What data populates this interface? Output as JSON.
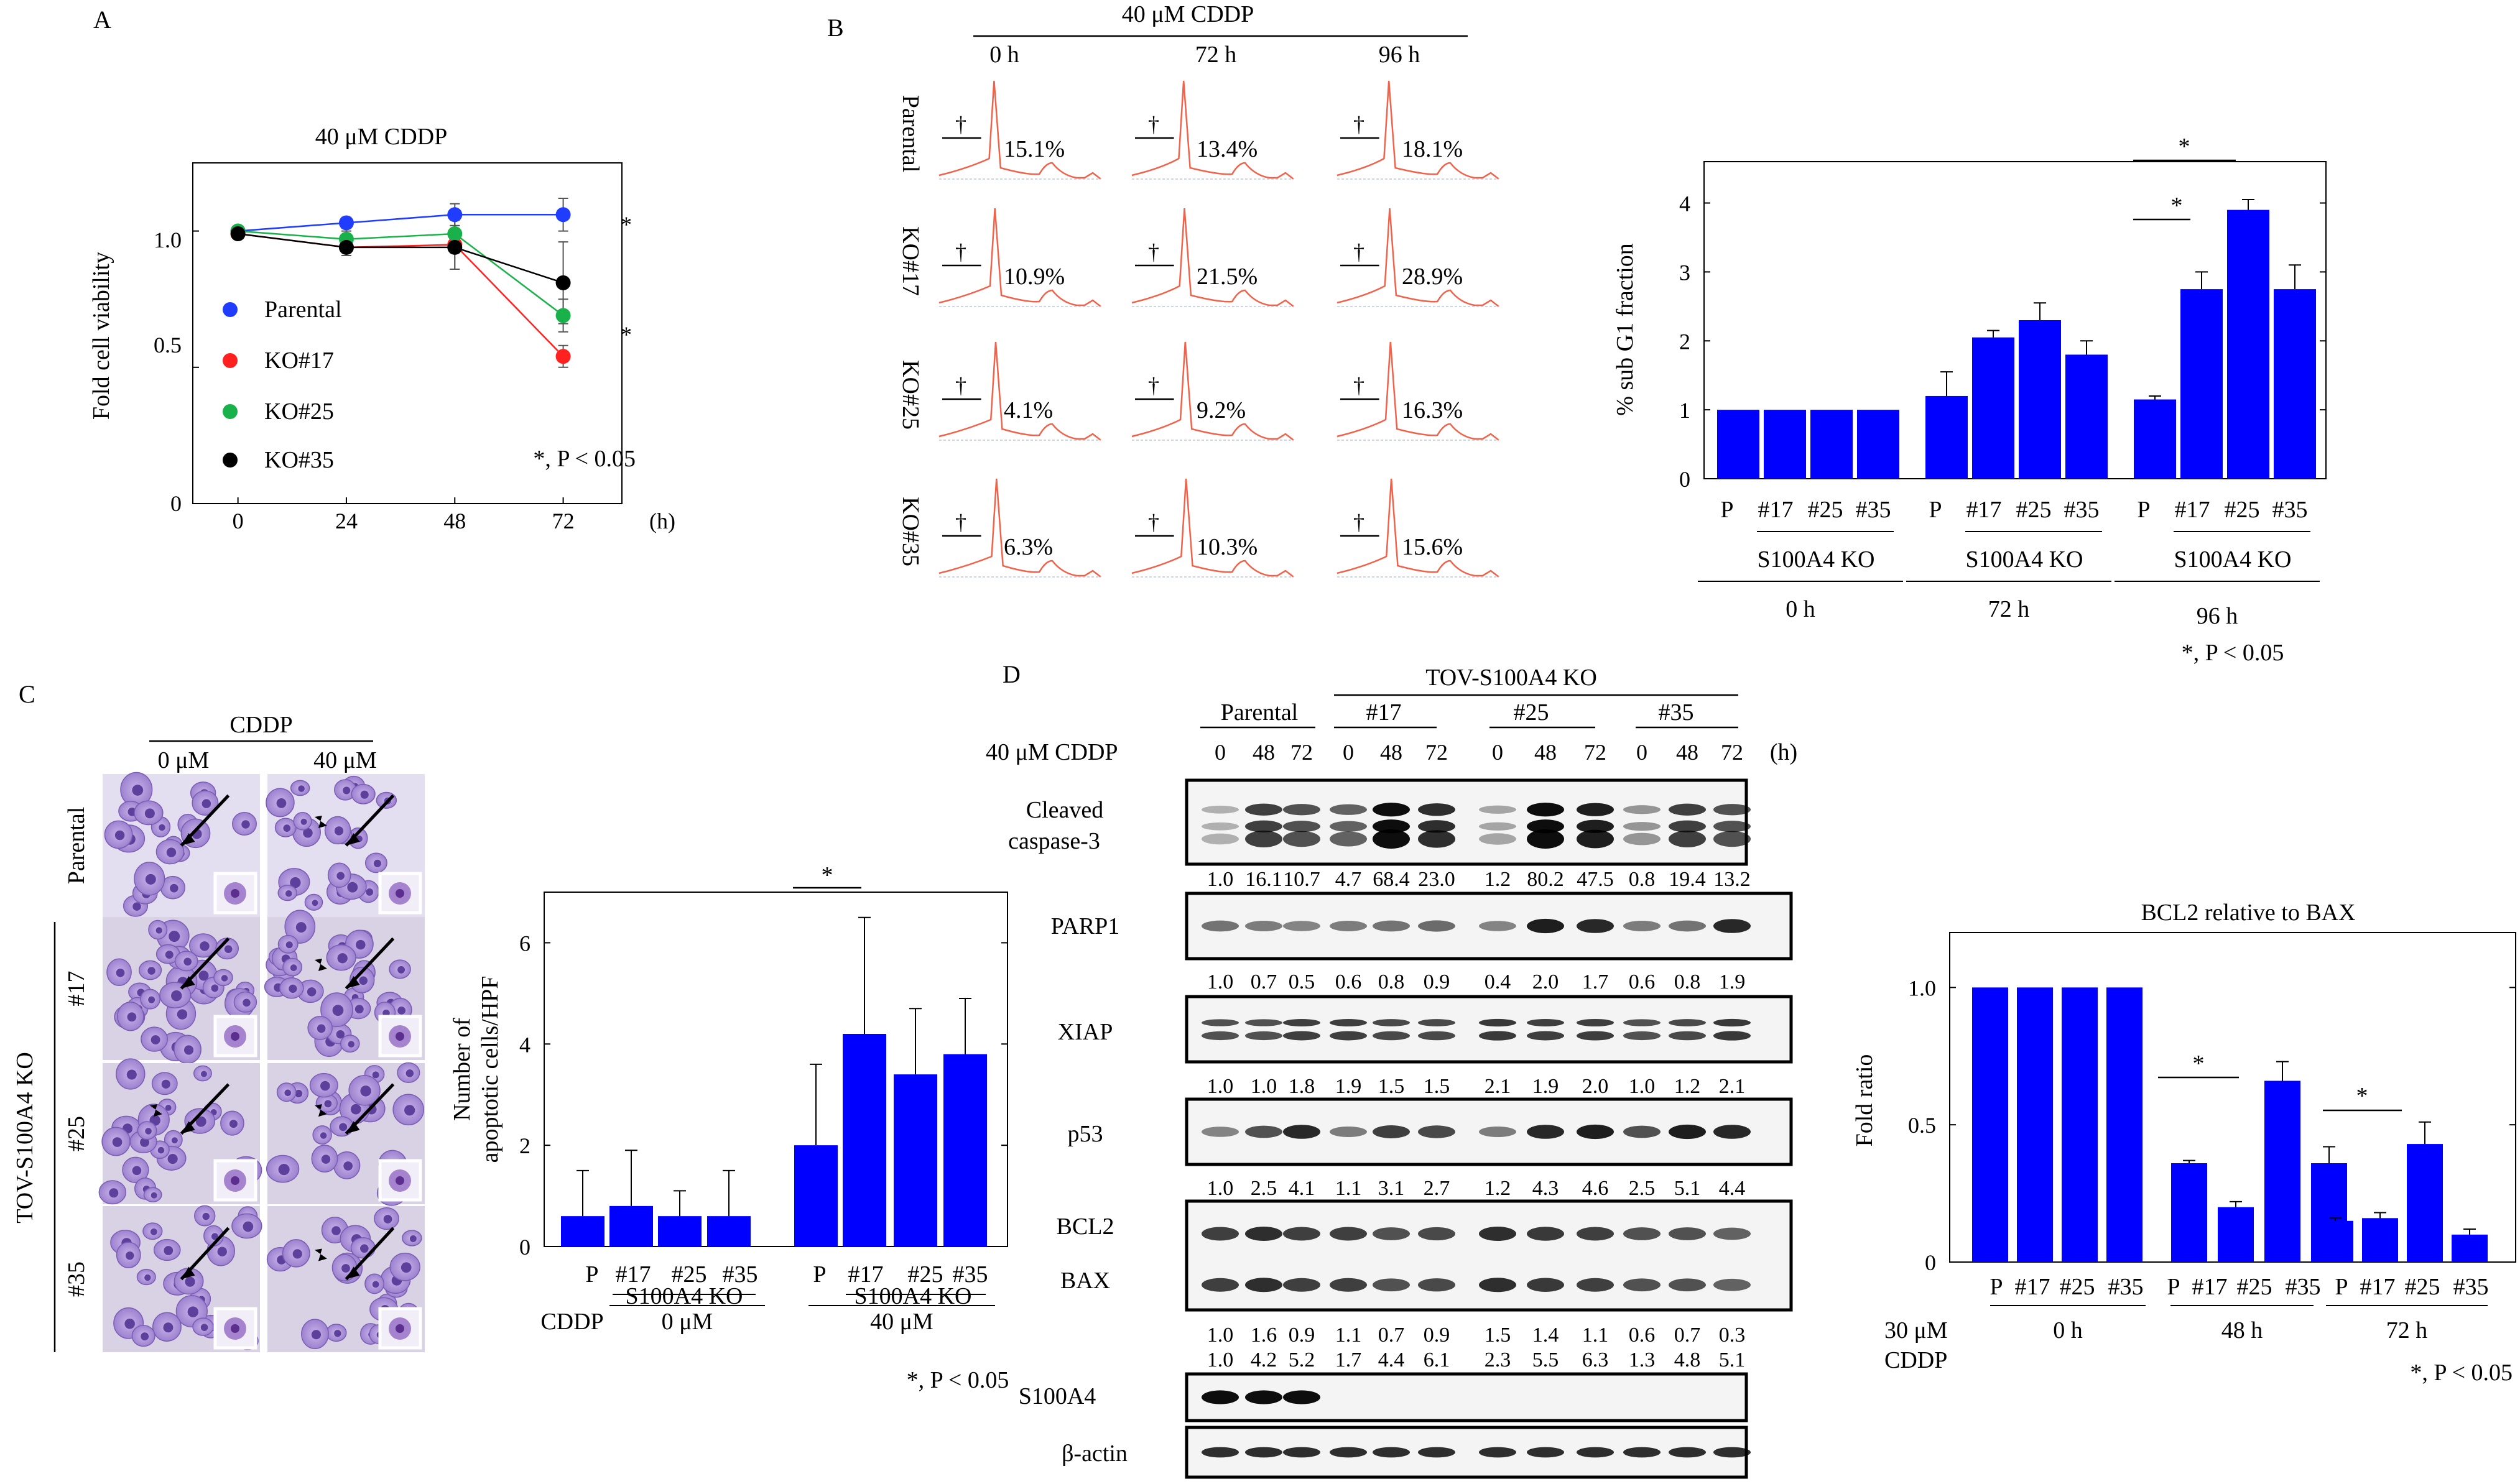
{
  "colors": {
    "bar": "#0000FF",
    "blue": "#1f3cff",
    "red": "#ff2020",
    "green": "#19b24a",
    "black": "#000000",
    "histogram": "#f0624a"
  },
  "panelA": {
    "label": "A",
    "title": "40 μM CDDP",
    "ylabel": "Fold cell viability",
    "xunit": "(h)",
    "yticks": [
      "0",
      "0.5",
      "1.0"
    ],
    "xticks": [
      "0",
      "24",
      "48",
      "72"
    ],
    "legend": [
      "Parental",
      "KO#17",
      "KO#25",
      "KO#35"
    ],
    "stars": [
      "*",
      "*"
    ],
    "pnote": "*, P < 0.05"
  },
  "panelB": {
    "label": "B",
    "treatment": "40 μM CDDP",
    "times": [
      "0 h",
      "72 h",
      "96 h"
    ],
    "rows": [
      "Parental",
      "KO#17",
      "KO#25",
      "KO#35"
    ],
    "dagger": "†",
    "percents": [
      [
        "15.1%",
        "13.4%",
        "18.1%"
      ],
      [
        "10.9%",
        "21.5%",
        "28.9%"
      ],
      [
        "4.1%",
        "9.2%",
        "16.3%"
      ],
      [
        "6.3%",
        "10.3%",
        "15.6%"
      ]
    ],
    "bar_chart": {
      "ylabel": "% sub G1 fraction",
      "yticks": [
        "0",
        "1",
        "2",
        "3",
        "4"
      ],
      "labels": [
        "P",
        "#17",
        "#25",
        "#35"
      ],
      "group_label": "S100A4 KO",
      "times": [
        "0 h",
        "72 h",
        "96 h"
      ],
      "stars": [
        "*",
        "*"
      ],
      "pnote": "*, P < 0.05"
    }
  },
  "panelC": {
    "label": "C",
    "treatment": "CDDP",
    "conc": [
      "0 μM",
      "40 μM"
    ],
    "rows": [
      "Parental",
      "#17",
      "#25",
      "#35"
    ],
    "group": "TOV-S100A4 KO",
    "bar_chart": {
      "ylabel": [
        "Number of",
        "apoptotic cells/HPF"
      ],
      "yticks": [
        "0",
        "2",
        "4",
        "6"
      ],
      "labels": [
        "P",
        "#17",
        "#25",
        "#35"
      ],
      "group_label": "S100A4 KO",
      "cddp": "CDDP",
      "conc": [
        "0 μM",
        "40 μM"
      ],
      "star": "*",
      "pnote": "*, P < 0.05"
    }
  },
  "panelD": {
    "label": "D",
    "title": "TOV-S100A4 KO",
    "groups": [
      "Parental",
      "#17",
      "#25",
      "#35"
    ],
    "treatment": "40 μM CDDP",
    "timepoints": [
      "0",
      "48",
      "72",
      "0",
      "48",
      "72",
      "0",
      "48",
      "72",
      "0",
      "48",
      "72"
    ],
    "unit": "(h)",
    "blots": [
      {
        "name": [
          "Cleaved",
          "caspase-3"
        ],
        "values": [
          "1.0",
          "16.1",
          "10.7",
          "4.7",
          "68.4",
          "23.0",
          "1.2",
          "80.2",
          "47.5",
          "0.8",
          "19.4",
          "13.2"
        ]
      },
      {
        "name": [
          "PARP1"
        ],
        "values": [
          "1.0",
          "0.7",
          "0.5",
          "0.6",
          "0.8",
          "0.9",
          "0.4",
          "2.0",
          "1.7",
          "0.6",
          "0.8",
          "1.9"
        ]
      },
      {
        "name": [
          "XIAP"
        ],
        "values": [
          "1.0",
          "1.0",
          "1.8",
          "1.9",
          "1.5",
          "1.5",
          "2.1",
          "1.9",
          "2.0",
          "1.0",
          "1.2",
          "2.1"
        ]
      },
      {
        "name": [
          "p53"
        ],
        "values": [
          "1.0",
          "2.5",
          "4.1",
          "1.1",
          "3.1",
          "2.7",
          "1.2",
          "4.3",
          "4.6",
          "2.5",
          "5.1",
          "4.4"
        ]
      },
      {
        "name": [
          "BCL2",
          "BAX"
        ],
        "values": [
          "1.0",
          "1.6",
          "0.9",
          "1.1",
          "0.7",
          "0.9",
          "1.5",
          "1.4",
          "1.1",
          "0.6",
          "0.7",
          "0.3"
        ],
        "values2": [
          "1.0",
          "4.2",
          "5.2",
          "1.7",
          "4.4",
          "6.1",
          "2.3",
          "5.5",
          "6.3",
          "1.3",
          "4.8",
          "5.1"
        ]
      },
      {
        "name": [
          "S100A4"
        ]
      },
      {
        "name": [
          "β-actin"
        ]
      }
    ],
    "bar_chart": {
      "title": "BCL2 relative to BAX",
      "ylabel": "Fold ratio",
      "yticks": [
        "0",
        "0.5",
        "1.0"
      ],
      "labels": [
        "P",
        "#17",
        "#25",
        "#35"
      ],
      "times": [
        "0 h",
        "48 h",
        "72 h"
      ],
      "treatment": [
        "30 μM",
        "CDDP"
      ],
      "stars": [
        "*",
        "*"
      ],
      "pnote": "*, P < 0.05"
    }
  },
  "chart_data": [
    {
      "type": "line",
      "title": "40 μM CDDP",
      "xlabel": "(h)",
      "ylabel": "Fold cell viability",
      "x": [
        0,
        24,
        48,
        72
      ],
      "xlim": [
        -10,
        85
      ],
      "ylim": [
        0,
        1.25
      ],
      "series": [
        {
          "name": "Parental",
          "values": [
            1.0,
            1.03,
            1.06,
            1.06
          ],
          "errors": [
            0.0,
            0.02,
            0.04,
            0.06
          ]
        },
        {
          "name": "KO#17",
          "values": [
            0.99,
            0.94,
            0.95,
            0.54
          ],
          "errors": [
            0.0,
            0.03,
            0.09,
            0.04
          ]
        },
        {
          "name": "KO#25",
          "values": [
            1.0,
            0.97,
            0.99,
            0.69
          ],
          "errors": [
            0.0,
            0.03,
            0.07,
            0.06
          ]
        },
        {
          "name": "KO#35",
          "values": [
            0.99,
            0.94,
            0.94,
            0.81
          ],
          "errors": [
            0.0,
            0.02,
            0.08,
            0.15
          ]
        }
      ]
    },
    {
      "type": "bar",
      "title": "",
      "ylabel": "% sub G1 fraction",
      "ylim": [
        0,
        4.6
      ],
      "categories": [
        "0 h P",
        "0 h #17",
        "0 h #25",
        "0 h #35",
        "72 h P",
        "72 h #17",
        "72 h #25",
        "72 h #35",
        "96 h P",
        "96 h #17",
        "96 h #25",
        "96 h #35"
      ],
      "values": [
        1.0,
        1.0,
        1.0,
        1.0,
        1.2,
        2.05,
        2.3,
        1.8,
        1.15,
        2.75,
        3.9,
        2.75
      ],
      "errors": [
        0,
        0,
        0,
        0,
        0.35,
        0.1,
        0.25,
        0.2,
        0.05,
        0.25,
        0.15,
        0.35
      ]
    },
    {
      "type": "bar",
      "title": "",
      "ylabel": "Number of apoptotic cells/HPF",
      "ylim": [
        0,
        7
      ],
      "categories": [
        "0 μM P",
        "0 μM #17",
        "0 μM #25",
        "0 μM #35",
        "40 μM P",
        "40 μM #17",
        "40 μM #25",
        "40 μM #35"
      ],
      "values": [
        0.6,
        0.8,
        0.6,
        0.6,
        2.0,
        4.2,
        3.4,
        3.8
      ],
      "errors": [
        0.9,
        1.1,
        0.5,
        0.9,
        1.6,
        2.3,
        1.3,
        1.1
      ]
    },
    {
      "type": "bar",
      "title": "BCL2 relative to BAX",
      "ylabel": "Fold ratio",
      "ylim": [
        0,
        1.2
      ],
      "categories": [
        "0 h P",
        "0 h #17",
        "0 h #25",
        "0 h #35",
        "48 h P",
        "48 h #17",
        "48 h #25",
        "48 h #35",
        "72 h P",
        "72 h #17",
        "72 h #25",
        "72 h #35"
      ],
      "values": [
        1.0,
        1.0,
        1.0,
        1.0,
        0.36,
        0.2,
        0.66,
        0.36,
        0.15,
        0.16,
        0.43,
        0.1
      ],
      "errors": [
        0,
        0,
        0,
        0,
        0.01,
        0.02,
        0.07,
        0.06,
        0.01,
        0.02,
        0.08,
        0.02
      ]
    }
  ]
}
